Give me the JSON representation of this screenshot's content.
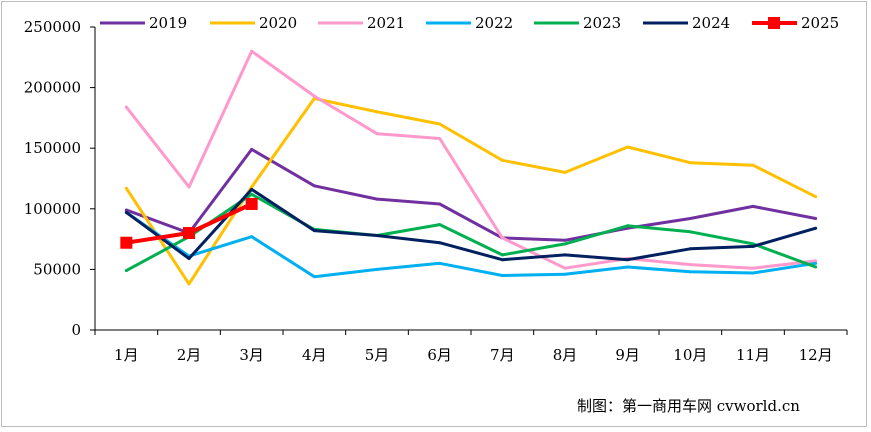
{
  "chart_data": {
    "type": "line",
    "categories": [
      "1月",
      "2月",
      "3月",
      "4月",
      "5月",
      "6月",
      "7月",
      "8月",
      "9月",
      "10月",
      "11月",
      "12月"
    ],
    "series": [
      {
        "name": "2019",
        "color": "#7030a0",
        "values": [
          99000,
          80000,
          149000,
          119000,
          108000,
          104000,
          76000,
          74000,
          84000,
          92000,
          102000,
          92000
        ]
      },
      {
        "name": "2020",
        "color": "#ffc000",
        "values": [
          117000,
          38000,
          118000,
          191000,
          180000,
          170000,
          140000,
          130000,
          151000,
          138000,
          136000,
          110000
        ]
      },
      {
        "name": "2021",
        "color": "#ff99cc",
        "values": [
          184000,
          118000,
          230000,
          193000,
          162000,
          158000,
          76000,
          51000,
          59000,
          54000,
          51000,
          57000
        ]
      },
      {
        "name": "2022",
        "color": "#00b0f0",
        "values": [
          97000,
          61000,
          77000,
          44000,
          50000,
          55000,
          45000,
          46000,
          52000,
          48000,
          47000,
          55000
        ]
      },
      {
        "name": "2023",
        "color": "#00b050",
        "values": [
          49000,
          77000,
          112000,
          83000,
          78000,
          87000,
          62000,
          71000,
          86000,
          81000,
          71000,
          52000
        ]
      },
      {
        "name": "2024",
        "color": "#002060",
        "values": [
          97000,
          59000,
          116000,
          82000,
          78000,
          72000,
          58000,
          62000,
          58000,
          67000,
          69000,
          84000
        ]
      },
      {
        "name": "2025",
        "color": "#ff0000",
        "marker": "square",
        "values": [
          72000,
          80000,
          104000,
          null,
          null,
          null,
          null,
          null,
          null,
          null,
          null,
          null
        ]
      }
    ],
    "ylim": [
      0,
      250000
    ],
    "yticks": [
      "0",
      "50000",
      "100000",
      "150000",
      "200000",
      "250000"
    ],
    "grid": false,
    "legend_position": "top"
  },
  "footer": {
    "credit": "制图：第一商用车网 cvworld.cn"
  }
}
